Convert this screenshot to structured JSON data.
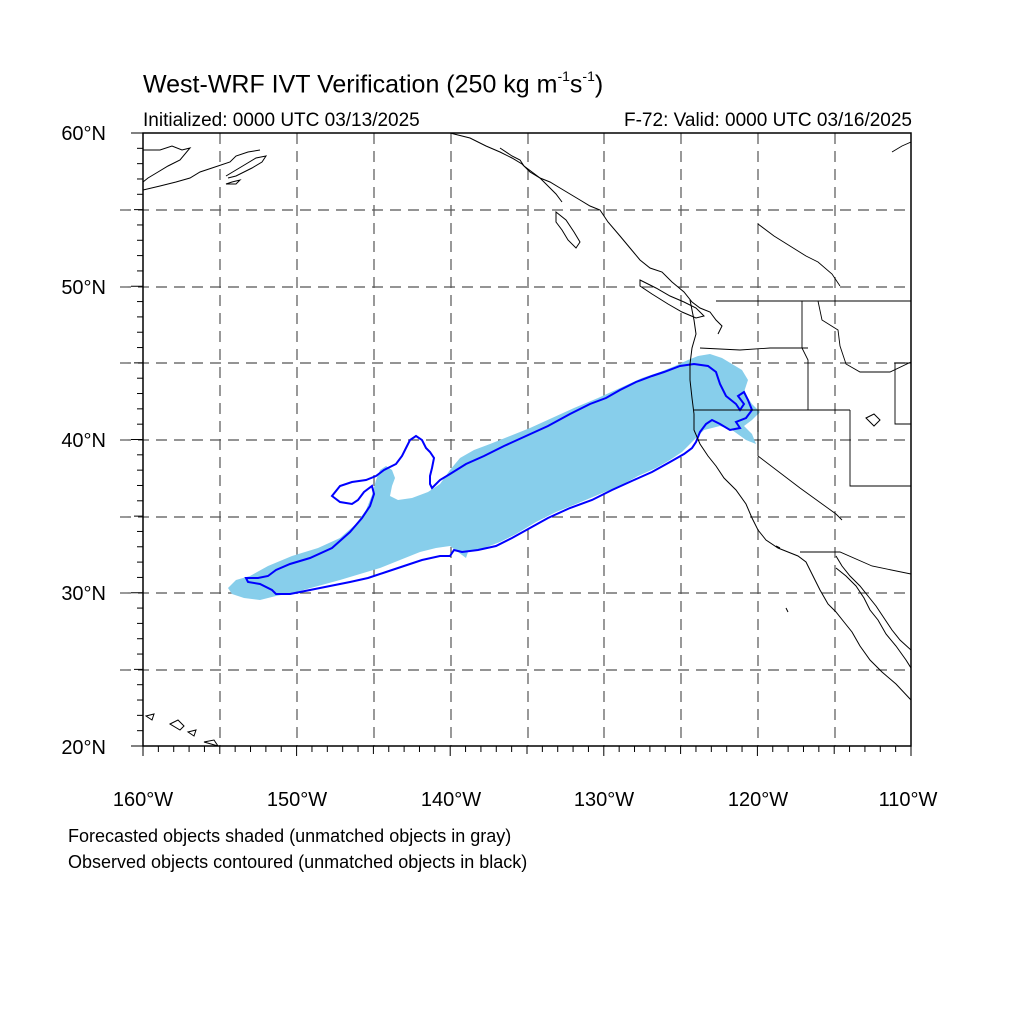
{
  "title": {
    "main": "West-WRF IVT Verification (250 kg m",
    "exp1": "-1",
    "mid": "s",
    "exp2": "-1",
    "close": ")"
  },
  "subtitle_left": "Initialized: 0000 UTC 03/13/2025",
  "subtitle_right": "F-72: Valid: 0000 UTC 03/16/2025",
  "notes": [
    "Forecasted objects shaded (unmatched objects in gray)",
    "Observed objects contoured (unmatched objects in black)"
  ],
  "map": {
    "lon_range": [
      -160,
      -110
    ],
    "lat_range": [
      20,
      60
    ],
    "lon_ticks": [
      "160°W",
      "150°W",
      "140°W",
      "130°W",
      "120°W",
      "110°W"
    ],
    "lat_ticks": [
      "20°N",
      "30°N",
      "40°N",
      "50°N",
      "60°N"
    ],
    "grid_lons": [
      -155,
      -150,
      -145,
      -140,
      -135,
      -130,
      -125,
      -120,
      -115
    ],
    "grid_lats": [
      25,
      30,
      35,
      40,
      45,
      50,
      55
    ],
    "colors": {
      "forecast_fill": "#87ceeb",
      "observed_contour": "#0000ff",
      "coastline": "#000000",
      "grid": "#555555"
    },
    "layers": [
      "coastlines",
      "state-boundaries",
      "forecast-object",
      "observed-object"
    ]
  }
}
